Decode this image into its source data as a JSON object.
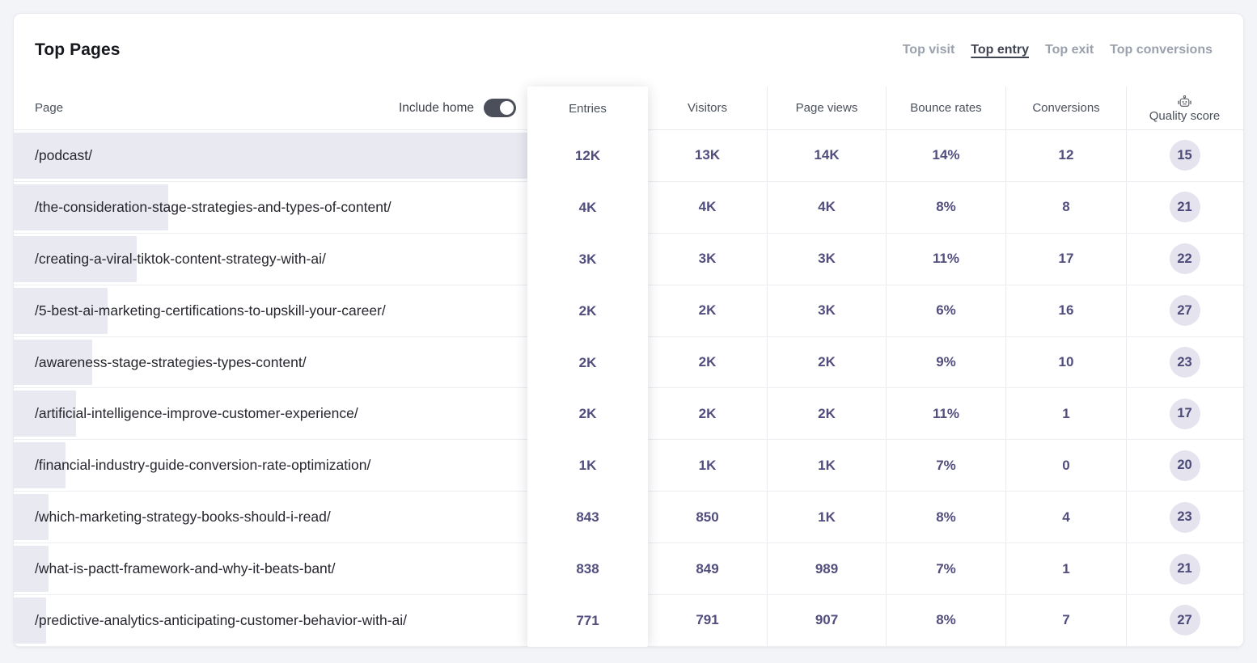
{
  "title": "Top Pages",
  "tabs": [
    {
      "label": "Top visit",
      "active": false
    },
    {
      "label": "Top entry",
      "active": true
    },
    {
      "label": "Top exit",
      "active": false
    },
    {
      "label": "Top conversions",
      "active": false
    }
  ],
  "table": {
    "page_column_label": "Page",
    "include_home": {
      "label": "Include home",
      "state": "on"
    },
    "entries_column_label": "Entries",
    "columns": [
      {
        "key": "visitors",
        "label": "Visitors"
      },
      {
        "key": "page_views",
        "label": "Page views"
      },
      {
        "key": "bounce_rates",
        "label": "Bounce rates"
      },
      {
        "key": "conversions",
        "label": "Conversions"
      },
      {
        "key": "quality_score",
        "label": "Quality score",
        "icon": "robot-icon"
      }
    ],
    "rows": [
      {
        "path": "/podcast/",
        "bar_pct": 100,
        "entries": "12K",
        "visitors": "13K",
        "page_views": "14K",
        "bounce_rates": "14%",
        "conversions": "12",
        "quality_score": "15"
      },
      {
        "path": "/the-consideration-stage-strategies-and-types-of-content/",
        "bar_pct": 30,
        "entries": "4K",
        "visitors": "4K",
        "page_views": "4K",
        "bounce_rates": "8%",
        "conversions": "8",
        "quality_score": "21"
      },
      {
        "path": "/creating-a-viral-tiktok-content-strategy-with-ai/",
        "bar_pct": 24,
        "entries": "3K",
        "visitors": "3K",
        "page_views": "3K",
        "bounce_rates": "11%",
        "conversions": "17",
        "quality_score": "22"
      },
      {
        "path": "/5-best-ai-marketing-certifications-to-upskill-your-career/",
        "bar_pct": 18.2,
        "entries": "2K",
        "visitors": "2K",
        "page_views": "3K",
        "bounce_rates": "6%",
        "conversions": "16",
        "quality_score": "27"
      },
      {
        "path": "/awareness-stage-strategies-types-content/",
        "bar_pct": 15.2,
        "entries": "2K",
        "visitors": "2K",
        "page_views": "2K",
        "bounce_rates": "9%",
        "conversions": "10",
        "quality_score": "23"
      },
      {
        "path": "/artificial-intelligence-improve-customer-experience/",
        "bar_pct": 12.1,
        "entries": "2K",
        "visitors": "2K",
        "page_views": "2K",
        "bounce_rates": "11%",
        "conversions": "1",
        "quality_score": "17"
      },
      {
        "path": "/financial-industry-guide-conversion-rate-optimization/",
        "bar_pct": 10,
        "entries": "1K",
        "visitors": "1K",
        "page_views": "1K",
        "bounce_rates": "7%",
        "conversions": "0",
        "quality_score": "20"
      },
      {
        "path": "/which-marketing-strategy-books-should-i-read/",
        "bar_pct": 6.8,
        "entries": "843",
        "visitors": "850",
        "page_views": "1K",
        "bounce_rates": "8%",
        "conversions": "4",
        "quality_score": "23"
      },
      {
        "path": "/what-is-pactt-framework-and-why-it-beats-bant/",
        "bar_pct": 6.8,
        "entries": "838",
        "visitors": "849",
        "page_views": "989",
        "bounce_rates": "7%",
        "conversions": "1",
        "quality_score": "21"
      },
      {
        "path": "/predictive-analytics-anticipating-customer-behavior-with-ai/",
        "bar_pct": 6.3,
        "entries": "771",
        "visitors": "791",
        "page_views": "907",
        "bounce_rates": "8%",
        "conversions": "7",
        "quality_score": "27"
      }
    ]
  },
  "colors": {
    "accent_text": "#514e7e",
    "badge_bg": "#e4e3ee",
    "bar_fill": "#e9e9f1",
    "toggle_on": "#4a4f59",
    "page_bg": "#f3f4f7"
  }
}
